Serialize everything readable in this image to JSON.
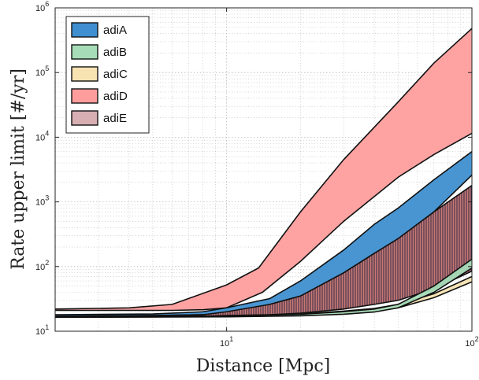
{
  "chart_data": {
    "type": "area",
    "xlabel": "Distance [Mpc]",
    "ylabel": "Rate upper limit [#/yr]",
    "xscale": "log",
    "yscale": "log",
    "xlim": [
      2,
      100
    ],
    "ylim": [
      10,
      1000000
    ],
    "x_ticks": [
      {
        "value": 10,
        "label": "10",
        "sup": "1"
      },
      {
        "value": 100,
        "label": "10",
        "sup": "2"
      }
    ],
    "y_ticks": [
      {
        "value": 10,
        "label": "10",
        "sup": "1"
      },
      {
        "value": 100,
        "label": "10",
        "sup": "2"
      },
      {
        "value": 1000,
        "label": "10",
        "sup": "3"
      },
      {
        "value": 10000,
        "label": "10",
        "sup": "4"
      },
      {
        "value": 100000,
        "label": "10",
        "sup": "5"
      },
      {
        "value": 1000000,
        "label": "10",
        "sup": "6"
      }
    ],
    "grid": true,
    "legend_position": "top-left",
    "series": [
      {
        "name": "adiD",
        "color": "#ff9d9d",
        "hatch": false,
        "upper": [
          [
            2,
            22
          ],
          [
            4,
            23
          ],
          [
            6,
            26
          ],
          [
            10,
            52
          ],
          [
            13.5,
            95
          ],
          [
            20,
            700
          ],
          [
            30,
            4500
          ],
          [
            50,
            35000
          ],
          [
            70,
            140000
          ],
          [
            100,
            480000
          ]
        ],
        "lower": [
          [
            2,
            21
          ],
          [
            4,
            21
          ],
          [
            6,
            21
          ],
          [
            8,
            21.5
          ],
          [
            10,
            23
          ],
          [
            14,
            40
          ],
          [
            20,
            120
          ],
          [
            30,
            500
          ],
          [
            50,
            2400
          ],
          [
            70,
            5400
          ],
          [
            100,
            11500
          ]
        ]
      },
      {
        "name": "adiA",
        "color": "#3f8fd0",
        "hatch": false,
        "upper": [
          [
            2,
            18
          ],
          [
            5,
            18.5
          ],
          [
            8,
            20
          ],
          [
            10,
            23
          ],
          [
            15,
            32
          ],
          [
            20,
            60
          ],
          [
            30,
            180
          ],
          [
            40,
            450
          ],
          [
            50,
            800
          ],
          [
            70,
            2200
          ],
          [
            100,
            6000
          ]
        ],
        "lower": [
          [
            2,
            17
          ],
          [
            5,
            17.5
          ],
          [
            8,
            18
          ],
          [
            10,
            19
          ],
          [
            15,
            26
          ],
          [
            20,
            35
          ],
          [
            30,
            80
          ],
          [
            40,
            160
          ],
          [
            50,
            250
          ],
          [
            70,
            700
          ],
          [
            100,
            2600
          ]
        ]
      },
      {
        "name": "adiE",
        "color": "#c87a72",
        "hatch": true,
        "upper": [
          [
            2,
            17
          ],
          [
            5,
            17.5
          ],
          [
            8,
            18
          ],
          [
            10,
            20
          ],
          [
            15,
            26
          ],
          [
            20,
            35
          ],
          [
            30,
            80
          ],
          [
            40,
            160
          ],
          [
            50,
            270
          ],
          [
            70,
            700
          ],
          [
            100,
            1800
          ]
        ],
        "lower": [
          [
            2,
            16.5
          ],
          [
            5,
            17
          ],
          [
            8,
            17
          ],
          [
            10,
            17.5
          ],
          [
            15,
            18
          ],
          [
            20,
            19
          ],
          [
            30,
            22
          ],
          [
            40,
            26
          ],
          [
            50,
            30
          ],
          [
            70,
            45
          ],
          [
            100,
            85
          ]
        ]
      },
      {
        "name": "adiC",
        "color": "#f7e3b2",
        "hatch": false,
        "upper": [
          [
            2,
            16.8
          ],
          [
            10,
            17.2
          ],
          [
            20,
            18.5
          ],
          [
            30,
            20.5
          ],
          [
            40,
            22.5
          ],
          [
            50,
            26
          ],
          [
            70,
            38
          ],
          [
            100,
            70
          ]
        ],
        "lower": [
          [
            2,
            16.5
          ],
          [
            10,
            16.8
          ],
          [
            20,
            17.5
          ],
          [
            30,
            18.5
          ],
          [
            40,
            20
          ],
          [
            50,
            23
          ],
          [
            70,
            33
          ],
          [
            100,
            58
          ]
        ]
      },
      {
        "name": "adiB",
        "color": "#a6dcb8",
        "hatch": false,
        "upper": [
          [
            2,
            16.7
          ],
          [
            10,
            17.1
          ],
          [
            20,
            18.3
          ],
          [
            30,
            20
          ],
          [
            40,
            22
          ],
          [
            50,
            26
          ],
          [
            70,
            50
          ],
          [
            100,
            130
          ]
        ],
        "lower": [
          [
            2,
            16.4
          ],
          [
            10,
            16.7
          ],
          [
            20,
            17.3
          ],
          [
            30,
            18.3
          ],
          [
            40,
            19.8
          ],
          [
            50,
            23
          ],
          [
            70,
            40
          ],
          [
            100,
            95
          ]
        ]
      }
    ],
    "legend": [
      {
        "label": "adiA",
        "color": "#3f8fd0"
      },
      {
        "label": "adiB",
        "color": "#a6dcb8"
      },
      {
        "label": "adiC",
        "color": "#f7e3b2"
      },
      {
        "label": "adiD",
        "color": "#ff9d9d"
      },
      {
        "label": "adiE",
        "color": "#d7aeb2"
      }
    ]
  }
}
